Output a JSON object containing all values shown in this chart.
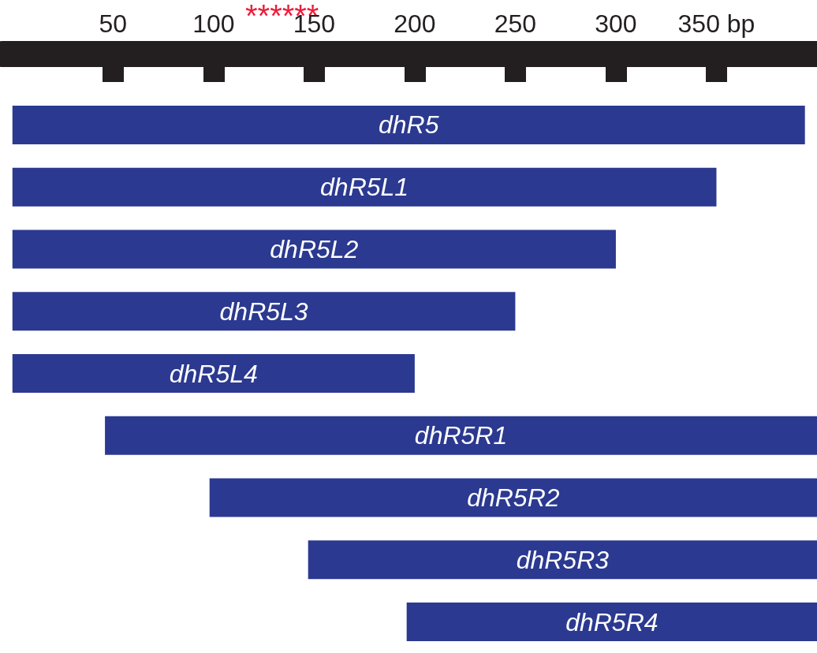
{
  "chart_data": {
    "type": "bar",
    "orientation": "horizontal",
    "categories": [
      "dhR5",
      "dhR5L1",
      "dhR5L2",
      "dhR5L3",
      "dhR5L4",
      "dhR5R1",
      "dhR5R2",
      "dhR5R3",
      "dhR5R4"
    ],
    "base": [
      0,
      0,
      0,
      0,
      0,
      46,
      98,
      147,
      196
    ],
    "values": [
      394,
      350,
      300,
      250,
      200,
      354,
      302,
      253,
      204
    ],
    "color": "#2b3990",
    "xlim": [
      -5,
      400
    ],
    "xticks": [
      50,
      100,
      150,
      200,
      250,
      300,
      {
        "value": 350,
        "label": "350 bp"
      }
    ],
    "annotations": [
      "******"
    ],
    "grid": false
  }
}
